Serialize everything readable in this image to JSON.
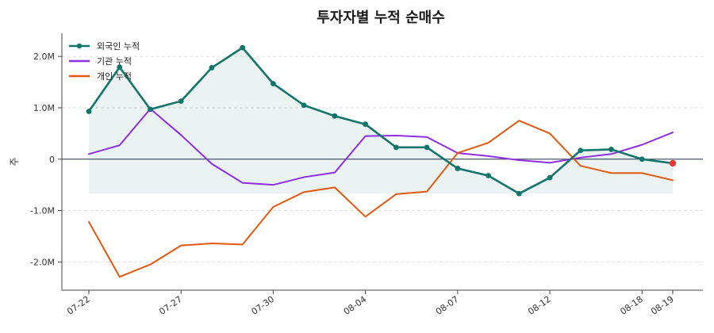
{
  "chart_data": {
    "type": "line",
    "title": "투자자별 누적 순매수",
    "xlabel": "",
    "ylabel": "주",
    "ylim": [
      -2.55,
      2.45
    ],
    "yticks": [
      {
        "value": 2.0,
        "label": "2.0M"
      },
      {
        "value": 1.0,
        "label": "1.0M"
      },
      {
        "value": 0,
        "label": "0"
      },
      {
        "value": -1.0,
        "label": "-1.0M"
      },
      {
        "value": -2.0,
        "label": "-2.0M"
      }
    ],
    "y_unit": "M",
    "x": [
      "07-22",
      "07-23",
      "07-25",
      "07-27",
      "07-28",
      "07-29",
      "07-30",
      "07-31",
      "08-01",
      "08-04",
      "08-05",
      "08-06",
      "08-07",
      "08-08",
      "08-11",
      "08-12",
      "08-13",
      "08-14",
      "08-18",
      "08-19"
    ],
    "xticks": [
      "07-22",
      "07-27",
      "07-30",
      "08-04",
      "08-07",
      "08-12",
      "08-18",
      "08-19"
    ],
    "grid": true,
    "legend_position": "top-left",
    "series": [
      {
        "name": "외국인 누적",
        "color": "#11756b",
        "markers": true,
        "fill_to_min": true,
        "last_point_color": "#e53935",
        "values": [
          0.93,
          1.79,
          0.97,
          1.13,
          1.78,
          2.17,
          1.47,
          1.05,
          0.84,
          0.68,
          0.23,
          0.23,
          -0.18,
          -0.32,
          -0.67,
          -0.36,
          0.17,
          0.19,
          0.0,
          -0.08
        ]
      },
      {
        "name": "기관 누적",
        "color": "#8e2de2",
        "markers": false,
        "values": [
          0.1,
          0.27,
          0.98,
          0.47,
          -0.09,
          -0.46,
          -0.5,
          -0.35,
          -0.26,
          0.45,
          0.46,
          0.43,
          0.12,
          0.06,
          -0.02,
          -0.07,
          0.03,
          0.1,
          0.28,
          0.52
        ]
      },
      {
        "name": "개인 누적",
        "color": "#e0590f",
        "markers": false,
        "values": [
          -1.22,
          -2.29,
          -2.05,
          -1.68,
          -1.64,
          -1.66,
          -0.93,
          -0.64,
          -0.55,
          -1.12,
          -0.68,
          -0.63,
          0.12,
          0.32,
          0.75,
          0.5,
          -0.13,
          -0.27,
          -0.27,
          -0.41
        ]
      }
    ]
  }
}
